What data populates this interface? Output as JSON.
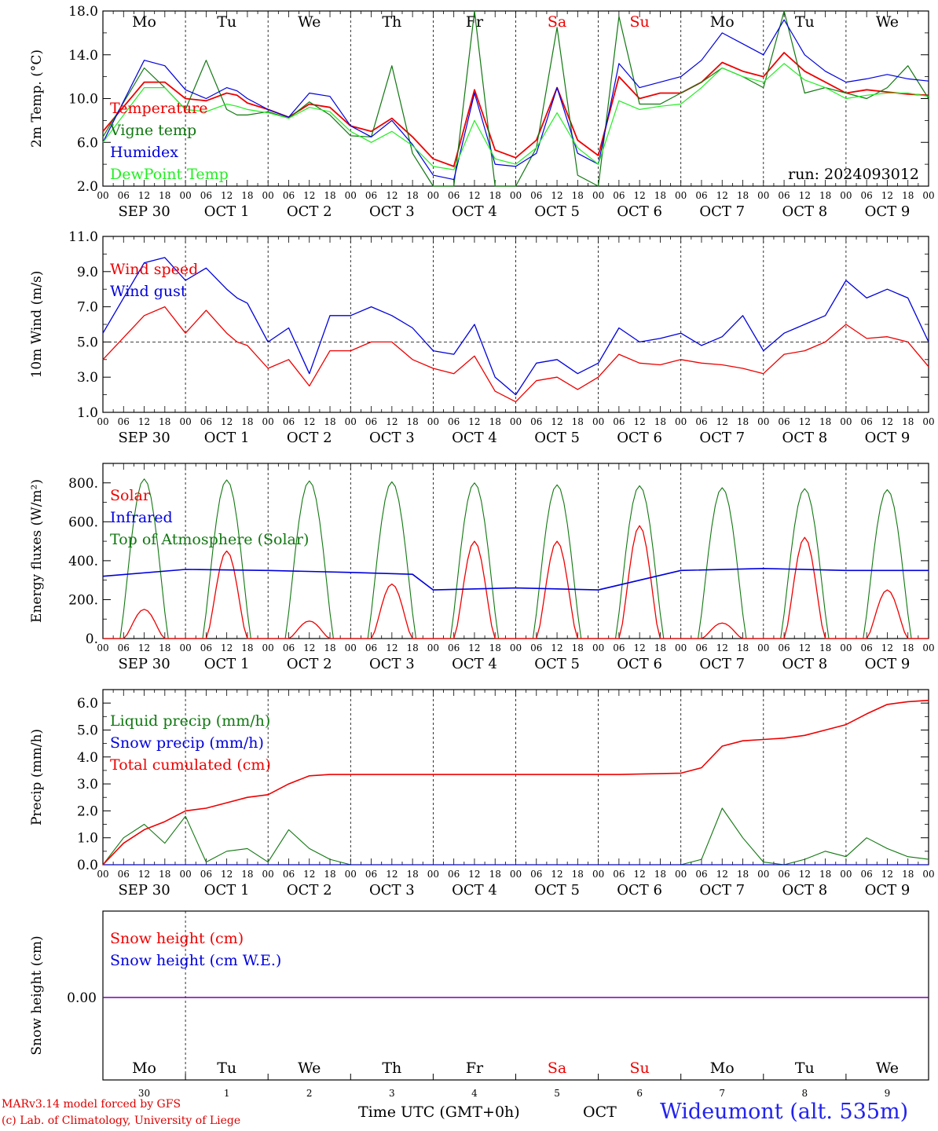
{
  "footer": {
    "model": "MARv3.14 model forced by GFS",
    "credit": "(c) Lab. of Climatology, University of Liege",
    "time_label": "Time UTC (GMT+0h)",
    "month_label": "OCT",
    "station": "Wideumont (alt. 535m)"
  },
  "colors": {
    "red": "#ee0000",
    "green": "#117711",
    "blue": "#0000dd",
    "light_green": "#22ee22",
    "purple": "#7700aa"
  },
  "chart_data": [
    {
      "type": "line",
      "ylabel": "2m Temp. (°C)",
      "ylim": [
        2,
        18
      ],
      "yticks": [
        "2.0",
        "6.0",
        "10.0",
        "14.0",
        "18.0"
      ],
      "ytick_values": [
        2,
        6,
        10,
        14,
        18
      ],
      "days": [
        "Mo",
        "Tu",
        "We",
        "Th",
        "Fr",
        "Sa",
        "Su",
        "Mo",
        "Tu",
        "We"
      ],
      "weekend_days": [
        5,
        6
      ],
      "annotation": "run: 2024093012",
      "hours": [
        0,
        12,
        18,
        24,
        30,
        36,
        39,
        42,
        48,
        54,
        60,
        66,
        72,
        78,
        84,
        90,
        96,
        102,
        108,
        114,
        120,
        126,
        132,
        138,
        144,
        150,
        156,
        162,
        168,
        174,
        180,
        186,
        192,
        198,
        204,
        210,
        216,
        222,
        228,
        234,
        240
      ],
      "series": [
        {
          "name": "Temperature",
          "color": "#ee0000",
          "values": [
            7.0,
            11.5,
            11.5,
            10.0,
            9.8,
            10.5,
            10.3,
            9.6,
            9.0,
            8.3,
            9.5,
            9.2,
            7.5,
            7.0,
            8.2,
            6.5,
            4.5,
            3.8,
            10.8,
            5.3,
            4.6,
            6.2,
            11.0,
            6.2,
            4.8,
            12.0,
            10.0,
            10.5,
            10.5,
            11.5,
            13.3,
            12.5,
            12.0,
            14.2,
            12.5,
            11.5,
            10.5,
            10.8,
            10.6,
            10.4,
            10.3
          ]
        },
        {
          "name": "Vigne temp",
          "color": "#117711",
          "values": [
            6.5,
            12.8,
            11.0,
            9.0,
            13.5,
            9.0,
            8.5,
            8.5,
            8.8,
            8.2,
            9.7,
            8.5,
            6.6,
            6.5,
            13.0,
            5.0,
            1.5,
            2.0,
            18.0,
            2.0,
            1.5,
            5.5,
            16.5,
            3.0,
            2.0,
            17.5,
            9.5,
            9.5,
            10.5,
            11.5,
            12.8,
            12.0,
            11.0,
            18.0,
            10.5,
            11.0,
            10.5,
            10.0,
            11.0,
            13.0,
            10.0
          ]
        },
        {
          "name": "Humidex",
          "color": "#0000dd",
          "values": [
            6.0,
            13.5,
            13.0,
            10.8,
            10.0,
            11.0,
            10.7,
            10.0,
            9.0,
            8.3,
            10.5,
            10.2,
            7.5,
            6.5,
            8.0,
            5.8,
            3.0,
            2.6,
            10.5,
            4.0,
            3.8,
            5.0,
            11.0,
            5.0,
            4.0,
            13.2,
            11.0,
            11.5,
            12.0,
            13.5,
            16.0,
            15.0,
            14.0,
            17.2,
            14.0,
            12.5,
            11.5,
            11.8,
            12.2,
            11.8,
            11.6
          ]
        },
        {
          "name": "DewPoint Temp",
          "color": "#22ee22",
          "values": [
            6.0,
            11.0,
            11.0,
            9.0,
            8.8,
            9.5,
            9.3,
            9.0,
            8.7,
            8.2,
            9.2,
            8.8,
            7.0,
            6.0,
            7.0,
            5.7,
            3.8,
            3.5,
            8.0,
            4.5,
            4.0,
            5.5,
            8.7,
            5.5,
            4.0,
            9.8,
            9.0,
            9.3,
            9.5,
            11.0,
            12.8,
            12.0,
            11.5,
            13.2,
            11.7,
            11.0,
            10.0,
            10.3,
            10.5,
            10.5,
            10.2
          ]
        }
      ]
    },
    {
      "type": "line",
      "ylabel": "10m Wind (m/s)",
      "ylim": [
        1,
        11
      ],
      "yticks": [
        "1.0",
        "3.0",
        "5.0",
        "7.0",
        "9.0",
        "11.0"
      ],
      "ytick_values": [
        1,
        3,
        5,
        7,
        9,
        11
      ],
      "reference_line": 5.0,
      "hours": [
        0,
        12,
        18,
        24,
        30,
        36,
        39,
        42,
        48,
        54,
        60,
        66,
        72,
        78,
        84,
        90,
        96,
        102,
        108,
        114,
        120,
        126,
        132,
        138,
        144,
        150,
        156,
        162,
        168,
        174,
        180,
        186,
        192,
        198,
        204,
        210,
        216,
        222,
        228,
        234,
        240
      ],
      "series": [
        {
          "name": "Wind speed",
          "color": "#ee0000",
          "values": [
            4.0,
            6.5,
            7.0,
            5.5,
            6.8,
            5.5,
            5.0,
            4.8,
            3.5,
            4.0,
            2.5,
            4.5,
            4.5,
            5.0,
            5.0,
            4.0,
            3.5,
            3.2,
            4.2,
            2.2,
            1.6,
            2.8,
            3.0,
            2.3,
            3.0,
            4.3,
            3.8,
            3.7,
            4.0,
            3.8,
            3.7,
            3.5,
            3.2,
            4.3,
            4.5,
            5.0,
            6.0,
            5.2,
            5.3,
            5.0,
            3.6
          ]
        },
        {
          "name": "Wind gust",
          "color": "#0000dd",
          "values": [
            5.5,
            9.5,
            9.8,
            8.5,
            9.2,
            8.0,
            7.5,
            7.2,
            5.0,
            5.8,
            3.2,
            6.5,
            6.5,
            7.0,
            6.5,
            5.8,
            4.5,
            4.3,
            6.0,
            3.0,
            2.0,
            3.8,
            4.0,
            3.2,
            3.8,
            5.8,
            5.0,
            5.2,
            5.5,
            4.8,
            5.3,
            6.5,
            4.5,
            5.5,
            6.0,
            6.5,
            8.5,
            7.5,
            8.0,
            7.5,
            5.0
          ]
        }
      ]
    },
    {
      "type": "line",
      "ylabel": "Energy fluxes (W/m²)",
      "ylim": [
        0,
        900
      ],
      "yticks": [
        "0.",
        "200.",
        "400.",
        "600.",
        "800."
      ],
      "ytick_values": [
        0,
        200,
        400,
        600,
        800
      ],
      "days": [
        {
          "day": "Sep 30",
          "solar_peak": 150,
          "toa_peak": 820
        },
        {
          "day": "Oct 1",
          "solar_peak": 450,
          "toa_peak": 815
        },
        {
          "day": "Oct 2",
          "solar_peak": 90,
          "toa_peak": 810
        },
        {
          "day": "Oct 3",
          "solar_peak": 280,
          "toa_peak": 805
        },
        {
          "day": "Oct 4",
          "solar_peak": 500,
          "toa_peak": 800
        },
        {
          "day": "Oct 5",
          "solar_peak": 500,
          "toa_peak": 790
        },
        {
          "day": "Oct 6",
          "solar_peak": 580,
          "toa_peak": 785
        },
        {
          "day": "Oct 7",
          "solar_peak": 80,
          "toa_peak": 775
        },
        {
          "day": "Oct 8",
          "solar_peak": 520,
          "toa_peak": 770
        },
        {
          "day": "Oct 9",
          "solar_peak": 250,
          "toa_peak": 765
        }
      ],
      "infrared": {
        "hours": [
          0,
          24,
          48,
          72,
          90,
          96,
          120,
          144,
          168,
          192,
          216,
          240
        ],
        "values": [
          320,
          355,
          350,
          340,
          330,
          250,
          260,
          250,
          350,
          360,
          350,
          350
        ]
      },
      "series": [
        {
          "name": "Solar",
          "color": "#ee0000"
        },
        {
          "name": "Infrared",
          "color": "#0000dd"
        },
        {
          "name": "Top of Atmosphere (Solar)",
          "color": "#117711"
        }
      ]
    },
    {
      "type": "line",
      "ylabel": "Precip (mm/h)",
      "ylim": [
        0,
        6.5
      ],
      "yticks": [
        "0.0",
        "1.0",
        "2.0",
        "3.0",
        "4.0",
        "5.0",
        "6.0"
      ],
      "ytick_values": [
        0,
        1,
        2,
        3,
        4,
        5,
        6
      ],
      "hours": [
        0,
        6,
        12,
        18,
        24,
        30,
        36,
        42,
        48,
        54,
        60,
        66,
        72,
        90,
        120,
        150,
        168,
        174,
        180,
        186,
        192,
        198,
        204,
        210,
        216,
        222,
        228,
        234,
        240
      ],
      "series": [
        {
          "name": "Liquid precip (mm/h)",
          "color": "#117711",
          "values": [
            0.0,
            1.0,
            1.5,
            0.8,
            1.8,
            0.1,
            0.5,
            0.6,
            0.1,
            1.3,
            0.6,
            0.2,
            0.0,
            0.0,
            0.0,
            0.0,
            0.0,
            0.2,
            2.1,
            1.0,
            0.1,
            0.0,
            0.2,
            0.5,
            0.3,
            1.0,
            0.6,
            0.3,
            0.2
          ]
        },
        {
          "name": "Snow precip (mm/h)",
          "color": "#0000dd",
          "values": [
            0,
            0,
            0,
            0,
            0,
            0,
            0,
            0,
            0,
            0,
            0,
            0,
            0,
            0,
            0,
            0,
            0,
            0,
            0,
            0,
            0,
            0,
            0,
            0,
            0,
            0,
            0,
            0,
            0
          ]
        },
        {
          "name": "Total cumulated (cm)",
          "color": "#ee0000",
          "values": [
            0.0,
            0.8,
            1.3,
            1.6,
            2.0,
            2.1,
            2.3,
            2.5,
            2.6,
            3.0,
            3.3,
            3.35,
            3.35,
            3.35,
            3.35,
            3.35,
            3.4,
            3.6,
            4.4,
            4.6,
            4.65,
            4.7,
            4.8,
            5.0,
            5.2,
            5.6,
            5.95,
            6.05,
            6.1
          ]
        }
      ]
    },
    {
      "type": "line",
      "ylabel": "Snow height (cm)",
      "yticks": [
        "0.00"
      ],
      "ytick_values": [
        0
      ],
      "days": [
        "Mo",
        "Tu",
        "We",
        "Th",
        "Fr",
        "Sa",
        "Su",
        "Mo",
        "Tu",
        "We"
      ],
      "weekend_days": [
        5,
        6
      ],
      "day_numbers": [
        "30",
        "1",
        "2",
        "3",
        "4",
        "5",
        "6",
        "7",
        "8",
        "9"
      ],
      "series": [
        {
          "name": "Snow height (cm)",
          "color": "#ee0000",
          "values": [
            0,
            0
          ]
        },
        {
          "name": "Snow height (cm W.E.)",
          "color": "#0000dd",
          "values": [
            0,
            0
          ]
        }
      ]
    }
  ],
  "xaxis": {
    "hour_ticks": [
      "00",
      "06",
      "12",
      "18"
    ],
    "final_tick": "00",
    "dates": [
      "SEP 30",
      "OCT  1",
      "OCT  2",
      "OCT  3",
      "OCT  4",
      "OCT  5",
      "OCT  6",
      "OCT  7",
      "OCT  8",
      "OCT  9"
    ]
  }
}
